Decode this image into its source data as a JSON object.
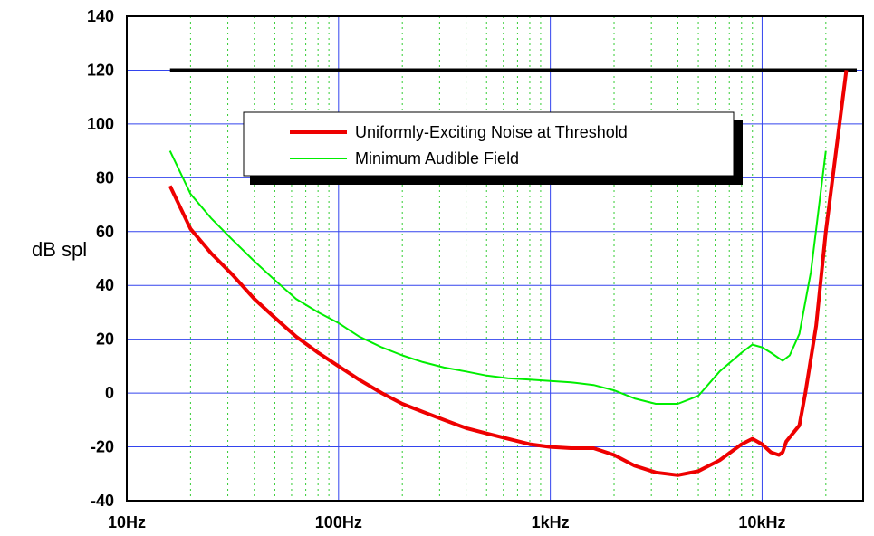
{
  "chart_data": {
    "type": "line",
    "xscale": "log",
    "xlim": [
      10,
      30000
    ],
    "ylim": [
      -40,
      140
    ],
    "grid": true,
    "legend_placement": "upper-center",
    "xlabel": "",
    "ylabel": "dB spl",
    "x_ticks": [
      {
        "value": 10,
        "label": "10Hz"
      },
      {
        "value": 100,
        "label": "100Hz"
      },
      {
        "value": 1000,
        "label": "1kHz"
      },
      {
        "value": 10000,
        "label": "10kHz"
      }
    ],
    "y_ticks": [
      -40,
      -20,
      0,
      20,
      40,
      60,
      80,
      100,
      120,
      140
    ],
    "reference_line": {
      "y": 120,
      "x": [
        16,
        28000
      ],
      "color": "#000000"
    },
    "series": [
      {
        "name": "Uniformly-Exciting Noise at Threshold",
        "color": "#ee0000",
        "points": [
          [
            16,
            77
          ],
          [
            20,
            61
          ],
          [
            25,
            52
          ],
          [
            31.5,
            44
          ],
          [
            40,
            35
          ],
          [
            50,
            28
          ],
          [
            63,
            21
          ],
          [
            80,
            15
          ],
          [
            100,
            10
          ],
          [
            125,
            5
          ],
          [
            160,
            0
          ],
          [
            200,
            -4
          ],
          [
            250,
            -7
          ],
          [
            315,
            -10
          ],
          [
            400,
            -13
          ],
          [
            500,
            -15
          ],
          [
            630,
            -17
          ],
          [
            800,
            -19
          ],
          [
            1000,
            -20
          ],
          [
            1250,
            -20.5
          ],
          [
            1600,
            -20.5
          ],
          [
            2000,
            -23
          ],
          [
            2500,
            -27
          ],
          [
            3150,
            -29.5
          ],
          [
            4000,
            -30.5
          ],
          [
            5000,
            -29
          ],
          [
            6300,
            -25
          ],
          [
            8000,
            -19
          ],
          [
            9000,
            -17
          ],
          [
            10000,
            -19
          ],
          [
            11000,
            -22
          ],
          [
            12000,
            -23
          ],
          [
            12500,
            -22
          ],
          [
            13000,
            -18
          ],
          [
            15000,
            -12
          ],
          [
            16000,
            0
          ],
          [
            18000,
            25
          ],
          [
            20000,
            60
          ],
          [
            25000,
            120
          ]
        ]
      },
      {
        "name": "Minimum Audible Field",
        "color": "#00ee00",
        "points": [
          [
            16,
            90
          ],
          [
            20,
            74
          ],
          [
            25,
            65
          ],
          [
            31.5,
            57
          ],
          [
            40,
            49
          ],
          [
            50,
            42
          ],
          [
            63,
            35
          ],
          [
            80,
            30
          ],
          [
            100,
            26
          ],
          [
            125,
            21
          ],
          [
            160,
            17
          ],
          [
            200,
            14
          ],
          [
            250,
            11.5
          ],
          [
            315,
            9.5
          ],
          [
            400,
            8
          ],
          [
            500,
            6.5
          ],
          [
            630,
            5.5
          ],
          [
            800,
            5
          ],
          [
            1000,
            4.5
          ],
          [
            1250,
            4
          ],
          [
            1600,
            3
          ],
          [
            2000,
            1
          ],
          [
            2500,
            -2
          ],
          [
            3150,
            -4
          ],
          [
            4000,
            -4
          ],
          [
            5000,
            -1
          ],
          [
            6300,
            8
          ],
          [
            8000,
            15
          ],
          [
            9000,
            18
          ],
          [
            10000,
            17
          ],
          [
            11000,
            15
          ],
          [
            12500,
            12
          ],
          [
            13500,
            14
          ],
          [
            15000,
            22
          ],
          [
            17000,
            45
          ],
          [
            20000,
            90
          ]
        ]
      }
    ]
  }
}
